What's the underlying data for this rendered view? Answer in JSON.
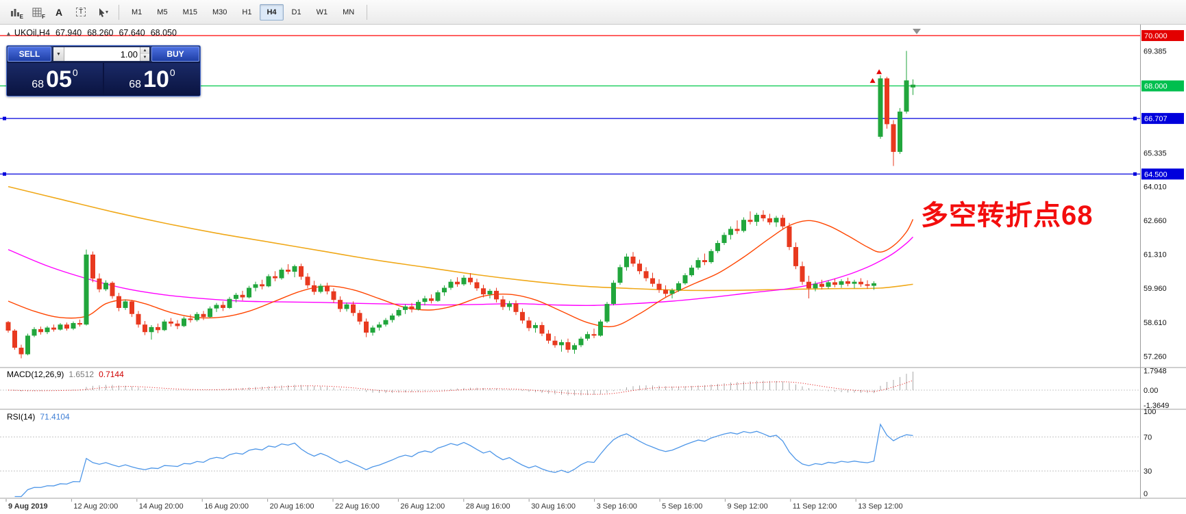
{
  "toolbar": {
    "icon_buttons": [
      {
        "name": "bar-chart-icon",
        "label": "E"
      },
      {
        "name": "grid-icon",
        "label": "F"
      },
      {
        "name": "text-annotation-icon",
        "label": "A"
      },
      {
        "name": "text-box-icon",
        "label": "T"
      },
      {
        "name": "cursor-icon",
        "label": ""
      }
    ],
    "timeframes": [
      "M1",
      "M5",
      "M15",
      "M30",
      "H1",
      "H4",
      "D1",
      "W1",
      "MN"
    ],
    "active_timeframe": "H4"
  },
  "glyphs": {
    "caret_down": "▾",
    "spinner_up": "▲",
    "spinner_down": "▼",
    "collapse_triangle": "▲"
  },
  "quote_header": {
    "symbol": "UKOil,H4",
    "open": "67.940",
    "high": "68.260",
    "low": "67.640",
    "close": "68.050"
  },
  "one_click": {
    "sell_label": "SELL",
    "buy_label": "BUY",
    "volume": "1.00",
    "sell_small": "68",
    "sell_big": "05",
    "sell_sup": "0",
    "buy_small": "68",
    "buy_big": "10",
    "buy_sup": "0"
  },
  "annotation": {
    "text": "多空转折点68",
    "color": "#F30D0D"
  },
  "indicators": {
    "macd_label": "MACD(12,26,9)",
    "macd_value": "1.6512",
    "macd_signal_value": "0.7144",
    "rsi_label": "RSI(14)",
    "rsi_value": "71.4104"
  },
  "price_scale": {
    "ticks": [
      {
        "label": "69.385",
        "price": 69.385
      },
      {
        "label": "65.335",
        "price": 65.335
      },
      {
        "label": "64.010",
        "price": 64.01
      },
      {
        "label": "62.660",
        "price": 62.66
      },
      {
        "label": "61.310",
        "price": 61.31
      },
      {
        "label": "59.960",
        "price": 59.96
      },
      {
        "label": "58.610",
        "price": 58.61
      },
      {
        "label": "57.260",
        "price": 57.26
      }
    ],
    "badges": [
      {
        "label": "70.000",
        "price": 70.0,
        "color": "#E30000"
      },
      {
        "label": "68.000",
        "price": 68.0,
        "color": "#00BF4E"
      },
      {
        "label": "66.707",
        "price": 66.707,
        "color": "#0000DC"
      },
      {
        "label": "64.500",
        "price": 64.5,
        "color": "#0000DC"
      }
    ]
  },
  "macd_scale": [
    {
      "label": "1.7948",
      "value": 1.7948
    },
    {
      "label": "0.00",
      "value": 0
    },
    {
      "label": "-1.3649",
      "value": -1.3649
    }
  ],
  "rsi_scale": [
    {
      "label": "100",
      "value": 100
    },
    {
      "label": "70",
      "value": 70
    },
    {
      "label": "30",
      "value": 30
    },
    {
      "label": "0",
      "value": 0
    }
  ],
  "time_axis": [
    "9 Aug 2019",
    "12 Aug 20:00",
    "14 Aug 20:00",
    "16 Aug 20:00",
    "20 Aug 16:00",
    "22 Aug 16:00",
    "26 Aug 12:00",
    "28 Aug 16:00",
    "30 Aug 16:00",
    "3 Sep 16:00",
    "5 Sep 16:00",
    "9 Sep 12:00",
    "11 Sep 12:00",
    "13 Sep 12:00"
  ],
  "chart_data": {
    "type": "candlestick",
    "symbol": "UKOil",
    "period": "H4",
    "y_axis": {
      "max": 70.38,
      "min": 56.84
    },
    "macd_axis": {
      "max": 2.0,
      "min": -1.687
    },
    "rsi_levels": [
      70,
      30
    ],
    "colors": {
      "up": "#21A63C",
      "down": "#E8391F",
      "ma_slow": "#F0A818",
      "ma_mid": "#FF00FF",
      "ma_fast": "#FF4500",
      "macd_hist": "#A8A8A8",
      "macd_signal": "#E00000",
      "rsi": "#4D96E8"
    },
    "hlines": [
      {
        "price": 70.0,
        "color": "#FF0000",
        "handles": false
      },
      {
        "price": 68.0,
        "color": "#00C84B",
        "handles": false
      },
      {
        "price": 66.707,
        "color": "#0000DC",
        "handles": true
      },
      {
        "price": 64.5,
        "color": "#0000DC",
        "handles": true
      }
    ],
    "markers": [
      {
        "index": 132.8,
        "price": 68.2,
        "color": "#E30000"
      },
      {
        "index": 133.8,
        "price": 68.55,
        "color": "#E30000"
      }
    ],
    "ma_slow_points": [
      [
        0,
        64.0
      ],
      [
        8,
        63.5
      ],
      [
        16,
        63.0
      ],
      [
        24,
        62.55
      ],
      [
        32,
        62.15
      ],
      [
        40,
        61.8
      ],
      [
        48,
        61.45
      ],
      [
        56,
        61.1
      ],
      [
        64,
        60.8
      ],
      [
        72,
        60.5
      ],
      [
        80,
        60.25
      ],
      [
        88,
        60.05
      ],
      [
        96,
        59.95
      ],
      [
        104,
        59.88
      ],
      [
        112,
        59.88
      ],
      [
        120,
        59.92
      ],
      [
        128,
        59.95
      ],
      [
        134,
        59.97
      ],
      [
        139,
        60.12
      ]
    ],
    "ma_mid_points": [
      [
        0,
        61.5
      ],
      [
        6,
        60.85
      ],
      [
        12,
        60.35
      ],
      [
        18,
        59.95
      ],
      [
        24,
        59.7
      ],
      [
        30,
        59.55
      ],
      [
        36,
        59.45
      ],
      [
        42,
        59.42
      ],
      [
        48,
        59.4
      ],
      [
        54,
        59.36
      ],
      [
        60,
        59.33
      ],
      [
        66,
        59.3
      ],
      [
        72,
        59.32
      ],
      [
        78,
        59.35
      ],
      [
        84,
        59.3
      ],
      [
        90,
        59.28
      ],
      [
        96,
        59.35
      ],
      [
        102,
        59.45
      ],
      [
        108,
        59.6
      ],
      [
        114,
        59.78
      ],
      [
        120,
        59.95
      ],
      [
        125,
        60.2
      ],
      [
        129,
        60.5
      ],
      [
        132,
        60.8
      ],
      [
        134,
        61.05
      ],
      [
        136,
        61.35
      ],
      [
        138,
        61.75
      ],
      [
        139,
        62.0
      ]
    ],
    "ma_fast_points": [
      [
        0,
        59.45
      ],
      [
        4,
        59.05
      ],
      [
        8,
        58.8
      ],
      [
        12,
        58.85
      ],
      [
        15,
        59.35
      ],
      [
        18,
        59.5
      ],
      [
        21,
        59.35
      ],
      [
        25,
        59.0
      ],
      [
        29,
        58.8
      ],
      [
        33,
        58.82
      ],
      [
        37,
        59.05
      ],
      [
        41,
        59.45
      ],
      [
        45,
        59.85
      ],
      [
        49,
        60.05
      ],
      [
        53,
        59.9
      ],
      [
        57,
        59.55
      ],
      [
        61,
        59.2
      ],
      [
        65,
        59.1
      ],
      [
        69,
        59.3
      ],
      [
        73,
        59.65
      ],
      [
        77,
        59.72
      ],
      [
        81,
        59.5
      ],
      [
        85,
        59.05
      ],
      [
        89,
        58.6
      ],
      [
        93,
        58.45
      ],
      [
        97,
        58.95
      ],
      [
        101,
        59.6
      ],
      [
        105,
        60.1
      ],
      [
        109,
        60.55
      ],
      [
        113,
        61.2
      ],
      [
        117,
        61.95
      ],
      [
        120,
        62.45
      ],
      [
        123,
        62.65
      ],
      [
        126,
        62.45
      ],
      [
        129,
        62.05
      ],
      [
        132,
        61.6
      ],
      [
        134,
        61.4
      ],
      [
        136,
        61.65
      ],
      [
        138,
        62.2
      ],
      [
        139,
        62.7
      ]
    ],
    "candles": [
      [
        58.62,
        58.66,
        58.2,
        58.28
      ],
      [
        58.28,
        58.34,
        57.52,
        57.6
      ],
      [
        57.6,
        57.72,
        57.18,
        57.34
      ],
      [
        57.34,
        58.16,
        57.3,
        58.08
      ],
      [
        58.08,
        58.42,
        58.02,
        58.34
      ],
      [
        58.34,
        58.44,
        58.12,
        58.22
      ],
      [
        58.22,
        58.46,
        58.14,
        58.4
      ],
      [
        58.4,
        58.52,
        58.24,
        58.32
      ],
      [
        58.32,
        58.58,
        58.28,
        58.52
      ],
      [
        58.52,
        58.6,
        58.28,
        58.36
      ],
      [
        58.36,
        58.64,
        58.3,
        58.58
      ],
      [
        58.58,
        58.72,
        58.44,
        58.52
      ],
      [
        58.52,
        61.5,
        58.48,
        61.3
      ],
      [
        61.3,
        61.42,
        60.2,
        60.35
      ],
      [
        60.35,
        60.55,
        59.8,
        59.92
      ],
      [
        59.92,
        60.28,
        59.85,
        60.18
      ],
      [
        60.18,
        60.24,
        59.55,
        59.65
      ],
      [
        59.65,
        59.78,
        59.05,
        59.18
      ],
      [
        59.18,
        59.52,
        59.1,
        59.44
      ],
      [
        59.44,
        59.5,
        58.82,
        58.94
      ],
      [
        58.94,
        59.06,
        58.4,
        58.52
      ],
      [
        58.52,
        58.66,
        58.1,
        58.22
      ],
      [
        58.22,
        58.5,
        57.92,
        58.42
      ],
      [
        58.42,
        58.56,
        58.18,
        58.3
      ],
      [
        58.3,
        58.72,
        58.26,
        58.64
      ],
      [
        58.64,
        58.78,
        58.44,
        58.56
      ],
      [
        58.56,
        58.7,
        58.34,
        58.46
      ],
      [
        58.46,
        58.84,
        58.42,
        58.76
      ],
      [
        58.76,
        58.92,
        58.6,
        58.7
      ],
      [
        58.7,
        59.02,
        58.64,
        58.94
      ],
      [
        58.94,
        59.06,
        58.7,
        58.82
      ],
      [
        58.82,
        59.24,
        58.78,
        59.16
      ],
      [
        59.16,
        59.38,
        59.02,
        59.3
      ],
      [
        59.3,
        59.44,
        59.06,
        59.18
      ],
      [
        59.18,
        59.62,
        59.14,
        59.54
      ],
      [
        59.54,
        59.78,
        59.4,
        59.7
      ],
      [
        59.7,
        59.86,
        59.48,
        59.6
      ],
      [
        59.6,
        60.06,
        59.56,
        59.98
      ],
      [
        59.98,
        60.22,
        59.84,
        60.12
      ],
      [
        60.12,
        60.3,
        59.92,
        60.04
      ],
      [
        60.04,
        60.52,
        60.0,
        60.44
      ],
      [
        60.44,
        60.64,
        60.24,
        60.36
      ],
      [
        60.36,
        60.78,
        60.3,
        60.7
      ],
      [
        60.7,
        60.92,
        60.52,
        60.62
      ],
      [
        60.62,
        60.9,
        60.4,
        60.84
      ],
      [
        60.84,
        60.94,
        60.3,
        60.42
      ],
      [
        60.42,
        60.56,
        59.96,
        60.08
      ],
      [
        60.08,
        60.26,
        59.7,
        59.82
      ],
      [
        59.82,
        60.14,
        59.76,
        60.06
      ],
      [
        60.06,
        60.18,
        59.72,
        59.84
      ],
      [
        59.84,
        59.96,
        59.38,
        59.5
      ],
      [
        59.5,
        59.64,
        59.02,
        59.14
      ],
      [
        59.14,
        59.4,
        59.04,
        59.32
      ],
      [
        59.32,
        59.44,
        58.86,
        58.98
      ],
      [
        58.98,
        59.1,
        58.52,
        58.64
      ],
      [
        58.64,
        58.76,
        58.02,
        58.2
      ],
      [
        58.2,
        58.48,
        58.08,
        58.4
      ],
      [
        58.4,
        58.62,
        58.28,
        58.52
      ],
      [
        58.52,
        58.78,
        58.44,
        58.7
      ],
      [
        58.7,
        58.96,
        58.6,
        58.88
      ],
      [
        58.88,
        59.18,
        58.82,
        59.1
      ],
      [
        59.1,
        59.32,
        58.94,
        59.24
      ],
      [
        59.24,
        59.38,
        59.0,
        59.12
      ],
      [
        59.12,
        59.5,
        59.08,
        59.42
      ],
      [
        59.42,
        59.66,
        59.28,
        59.56
      ],
      [
        59.56,
        59.72,
        59.36,
        59.46
      ],
      [
        59.46,
        59.88,
        59.42,
        59.8
      ],
      [
        59.8,
        60.08,
        59.66,
        59.98
      ],
      [
        59.98,
        60.32,
        59.9,
        60.22
      ],
      [
        60.22,
        60.4,
        60.02,
        60.12
      ],
      [
        60.12,
        60.48,
        60.06,
        60.38
      ],
      [
        60.38,
        60.56,
        60.1,
        60.2
      ],
      [
        60.2,
        60.34,
        59.86,
        59.96
      ],
      [
        59.96,
        60.1,
        59.6,
        59.72
      ],
      [
        59.72,
        59.94,
        59.56,
        59.86
      ],
      [
        59.86,
        59.98,
        59.4,
        59.52
      ],
      [
        59.52,
        59.66,
        59.1,
        59.22
      ],
      [
        59.22,
        59.46,
        59.08,
        59.36
      ],
      [
        59.36,
        59.48,
        58.9,
        59.02
      ],
      [
        59.02,
        59.16,
        58.56,
        58.68
      ],
      [
        58.68,
        58.82,
        58.26,
        58.38
      ],
      [
        58.38,
        58.6,
        58.2,
        58.5
      ],
      [
        58.5,
        58.62,
        58.06,
        58.16
      ],
      [
        58.16,
        58.3,
        57.76,
        57.88
      ],
      [
        57.88,
        58.06,
        57.6,
        57.7
      ],
      [
        57.7,
        57.92,
        57.44,
        57.82
      ],
      [
        57.82,
        57.96,
        57.4,
        57.52
      ],
      [
        57.52,
        57.78,
        57.36,
        57.7
      ],
      [
        57.7,
        58.04,
        57.62,
        57.96
      ],
      [
        57.96,
        58.24,
        57.88,
        58.14
      ],
      [
        58.14,
        58.36,
        57.98,
        58.08
      ],
      [
        58.08,
        58.72,
        58.04,
        58.64
      ],
      [
        58.64,
        59.42,
        58.58,
        59.34
      ],
      [
        59.34,
        60.28,
        59.28,
        60.18
      ],
      [
        60.18,
        60.9,
        60.1,
        60.8
      ],
      [
        60.8,
        61.34,
        60.66,
        61.22
      ],
      [
        61.22,
        61.4,
        60.82,
        60.94
      ],
      [
        60.94,
        61.1,
        60.52,
        60.64
      ],
      [
        60.64,
        60.8,
        60.24,
        60.36
      ],
      [
        60.36,
        60.58,
        60.02,
        60.14
      ],
      [
        60.14,
        60.32,
        59.78,
        59.9
      ],
      [
        59.9,
        60.08,
        59.62,
        59.74
      ],
      [
        59.74,
        59.96,
        59.56,
        59.88
      ],
      [
        59.88,
        60.24,
        59.82,
        60.16
      ],
      [
        60.16,
        60.56,
        60.1,
        60.48
      ],
      [
        60.48,
        60.88,
        60.42,
        60.78
      ],
      [
        60.78,
        61.18,
        60.7,
        61.08
      ],
      [
        61.08,
        61.34,
        60.88,
        61.0
      ],
      [
        61.0,
        61.52,
        60.94,
        61.44
      ],
      [
        61.44,
        61.86,
        61.36,
        61.76
      ],
      [
        61.76,
        62.18,
        61.68,
        62.08
      ],
      [
        62.08,
        62.42,
        61.9,
        62.32
      ],
      [
        62.32,
        62.66,
        62.12,
        62.24
      ],
      [
        62.24,
        62.78,
        62.18,
        62.68
      ],
      [
        62.68,
        63.02,
        62.5,
        62.6
      ],
      [
        62.6,
        62.96,
        62.44,
        62.88
      ],
      [
        62.88,
        63.06,
        62.62,
        62.74
      ],
      [
        62.74,
        62.92,
        62.48,
        62.58
      ],
      [
        62.58,
        62.84,
        62.4,
        62.76
      ],
      [
        62.76,
        62.88,
        62.3,
        62.42
      ],
      [
        62.42,
        62.56,
        61.48,
        61.6
      ],
      [
        61.6,
        61.78,
        60.72,
        60.84
      ],
      [
        60.84,
        61.02,
        60.1,
        60.22
      ],
      [
        60.22,
        60.46,
        59.56,
        59.96
      ],
      [
        59.96,
        60.24,
        59.84,
        60.14
      ],
      [
        60.14,
        60.3,
        59.92,
        60.02
      ],
      [
        60.02,
        60.28,
        59.94,
        60.2
      ],
      [
        60.2,
        60.34,
        60.0,
        60.1
      ],
      [
        60.1,
        60.32,
        59.98,
        60.24
      ],
      [
        60.24,
        60.38,
        60.04,
        60.14
      ],
      [
        60.14,
        60.3,
        59.96,
        60.22
      ],
      [
        60.22,
        60.36,
        60.02,
        60.12
      ],
      [
        60.12,
        60.28,
        59.94,
        60.06
      ],
      [
        60.06,
        60.24,
        59.9,
        60.16
      ],
      [
        65.98,
        68.42,
        65.9,
        68.3
      ],
      [
        68.3,
        68.36,
        66.3,
        66.48
      ],
      [
        66.48,
        66.64,
        64.82,
        65.38
      ],
      [
        65.38,
        67.12,
        65.3,
        66.98
      ],
      [
        66.98,
        69.39,
        66.9,
        68.22
      ],
      [
        67.94,
        68.26,
        67.64,
        68.05
      ]
    ]
  }
}
